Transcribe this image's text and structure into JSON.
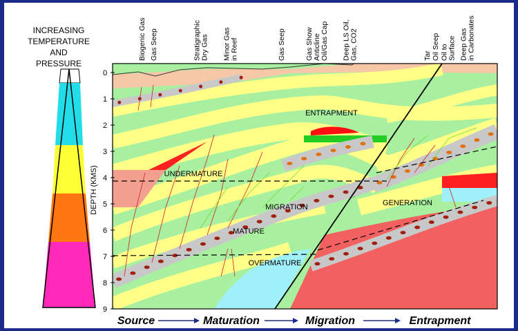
{
  "scale": {
    "title": [
      "INCREASING",
      "TEMPERATURE",
      "AND",
      "PRESSURE"
    ]
  },
  "axis": {
    "label": "DEPTH (KMS)",
    "ticks": [
      0,
      1,
      2,
      3,
      4,
      5,
      6,
      7,
      8,
      9
    ]
  },
  "top_labels": [
    [
      "Biogenic Gas"
    ],
    [
      "Gas Seep"
    ],
    [
      "Stratigraphic",
      "Dry Gas"
    ],
    [
      "Minor Gas",
      "in Reef"
    ],
    [
      "Gas Seep"
    ],
    [
      "Gas Show",
      "Anticline",
      "Oil/Gas Cap"
    ],
    [
      "Deep LS Oil,",
      "Gas, CO2"
    ],
    [
      "Tar"
    ],
    [
      "Oil Seep"
    ],
    [
      "Oil to",
      "Surface"
    ],
    [
      "Deep Gas",
      "in Carbonates"
    ]
  ],
  "zones": [
    "ENTRAPMENT",
    "UNDERMATURE",
    "MIGRATION",
    "MATURE",
    "OVERMATURE",
    "GENERATION"
  ],
  "stages": [
    "Source",
    "Maturation",
    "Migration",
    "Entrapment"
  ]
}
